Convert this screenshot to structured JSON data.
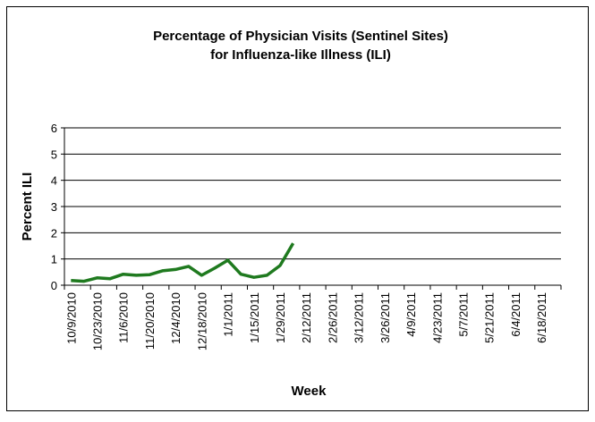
{
  "chart_data": {
    "type": "line",
    "title": [
      "Percentage of Physician Visits (Sentinel Sites)",
      "for Influenza-like Illness (ILI)"
    ],
    "x_label": "Week",
    "y_label": "Percent ILI",
    "categories": [
      "10/9/2010",
      null,
      "10/23/2010",
      null,
      "11/6/2010",
      null,
      "11/20/2010",
      null,
      "12/4/2010",
      null,
      "12/18/2010",
      null,
      "1/1/2011",
      null,
      "1/15/2011",
      null,
      "1/29/2011",
      null,
      "2/12/2011",
      null,
      "2/26/2011",
      null,
      "3/12/2011",
      null,
      "3/26/2011",
      null,
      "4/9/2011",
      null,
      "4/23/2011",
      null,
      "5/7/2011",
      null,
      "5/21/2011",
      null,
      "6/4/2011",
      null,
      "6/18/2011",
      null
    ],
    "series": [
      {
        "name": "ILI",
        "color": "#1f7a1f",
        "values": [
          0.18,
          0.15,
          0.28,
          0.25,
          0.42,
          0.38,
          0.4,
          0.55,
          0.6,
          0.72,
          0.38,
          0.65,
          0.95,
          0.42,
          0.3,
          0.38,
          0.75,
          1.6,
          null,
          null,
          null,
          null,
          null,
          null,
          null,
          null,
          null,
          null,
          null,
          null,
          null,
          null,
          null,
          null,
          null,
          null,
          null,
          null
        ]
      }
    ],
    "ylim": [
      0,
      6
    ],
    "yticks": [
      0,
      1,
      2,
      3,
      4,
      5,
      6
    ],
    "grid": true
  }
}
